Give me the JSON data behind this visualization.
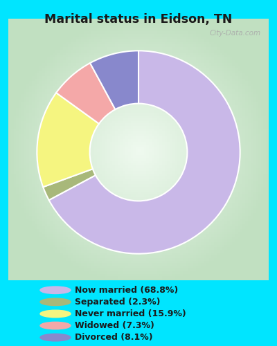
{
  "title": "Marital status in Eidson, TN",
  "title_color": "#1a1a1a",
  "background_outer": "#00e5ff",
  "background_inner_center": "#e8f5e9",
  "background_inner_edge": "#c8e6c9",
  "watermark": "City-Data.com",
  "slices": [
    {
      "label": "Now married (68.8%)",
      "value": 68.8,
      "color": "#c9b8e8"
    },
    {
      "label": "Separated (2.3%)",
      "value": 2.3,
      "color": "#a8b87a"
    },
    {
      "label": "Never married (15.9%)",
      "value": 15.9,
      "color": "#f5f580"
    },
    {
      "label": "Widowed (7.3%)",
      "value": 7.3,
      "color": "#f4a8a8"
    },
    {
      "label": "Divorced (8.1%)",
      "value": 8.1,
      "color": "#8888cc"
    }
  ],
  "legend_colors": [
    "#c9b8e8",
    "#a8b87a",
    "#f5f580",
    "#f4a8a8",
    "#8888cc"
  ],
  "legend_labels": [
    "Now married (68.8%)",
    "Separated (2.3%)",
    "Never married (15.9%)",
    "Widowed (7.3%)",
    "Divorced (8.1%)"
  ],
  "donut_width": 0.52,
  "figsize": [
    4.0,
    5.0
  ],
  "dpi": 100
}
